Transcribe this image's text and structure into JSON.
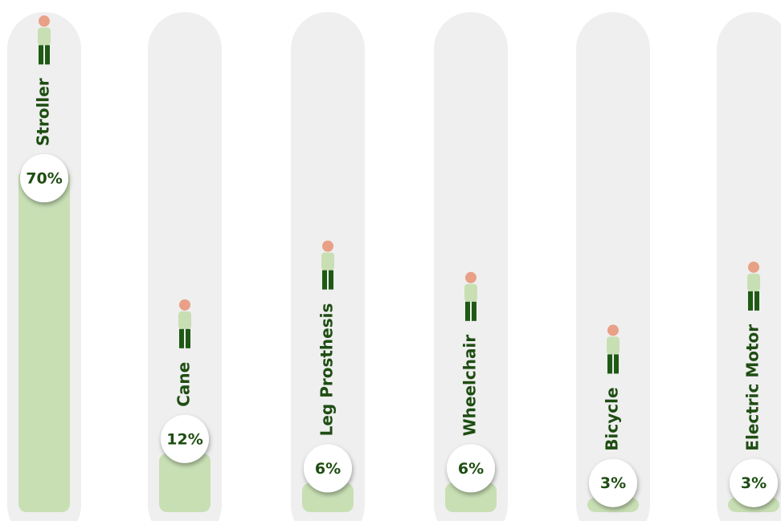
{
  "chart_data": {
    "type": "bar",
    "categories": [
      "Stroller",
      "Cane",
      "Leg Prosthesis",
      "Wheelchair",
      "Bicycle",
      "Electric Motor"
    ],
    "values": [
      70,
      12,
      6,
      6,
      3,
      3
    ],
    "value_labels": [
      "70%",
      "12%",
      "6%",
      "6%",
      "3%",
      "3%"
    ],
    "color": "#c8dfb4"
  }
}
